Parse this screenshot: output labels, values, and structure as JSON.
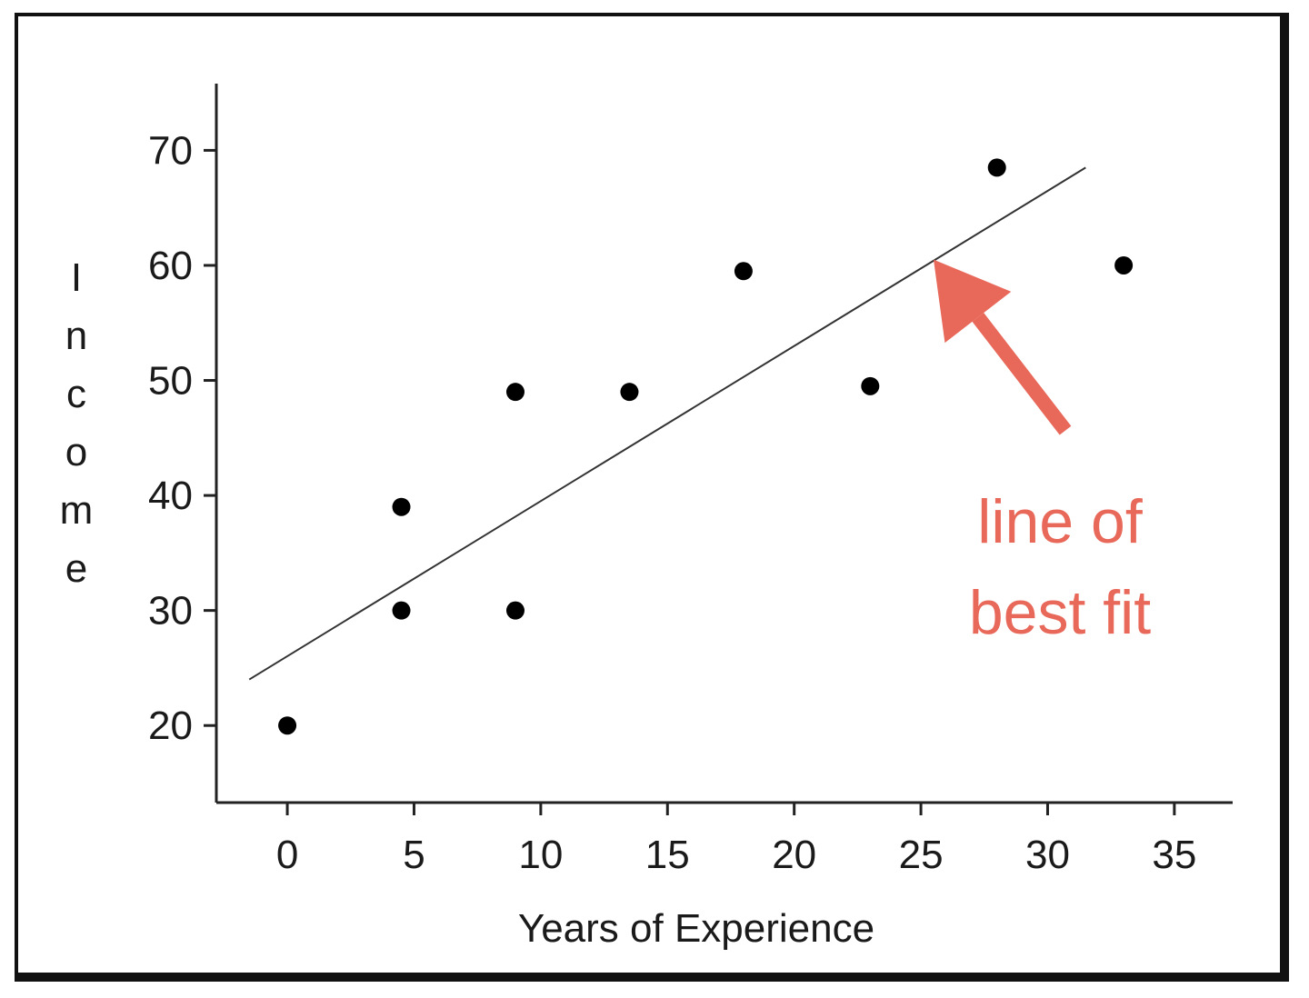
{
  "chart_data": {
    "type": "scatter",
    "xlabel": "Years of Experience",
    "ylabel": "Income",
    "x_ticks": [
      0,
      5,
      10,
      15,
      20,
      25,
      30,
      35
    ],
    "y_ticks": [
      20,
      30,
      40,
      50,
      60,
      70
    ],
    "xlim": [
      -2.8,
      37.3
    ],
    "ylim": [
      13.3,
      75.8
    ],
    "grid": false,
    "points": [
      {
        "x": 0,
        "y": 20
      },
      {
        "x": 4.5,
        "y": 30
      },
      {
        "x": 4.5,
        "y": 39
      },
      {
        "x": 9,
        "y": 30
      },
      {
        "x": 9,
        "y": 49
      },
      {
        "x": 13.5,
        "y": 49
      },
      {
        "x": 18,
        "y": 59.5
      },
      {
        "x": 23,
        "y": 49.5
      },
      {
        "x": 28,
        "y": 68.5
      },
      {
        "x": 33,
        "y": 60
      }
    ],
    "fit_line": {
      "x": [
        -1.5,
        31.5
      ],
      "y": [
        24,
        68.5
      ]
    },
    "annotation": {
      "lines": [
        "line of",
        "best fit"
      ],
      "color": "#e8685a",
      "target": {
        "x": 25.5,
        "y": 60.5
      }
    },
    "point_color": "#000000",
    "line_color": "#333333"
  }
}
